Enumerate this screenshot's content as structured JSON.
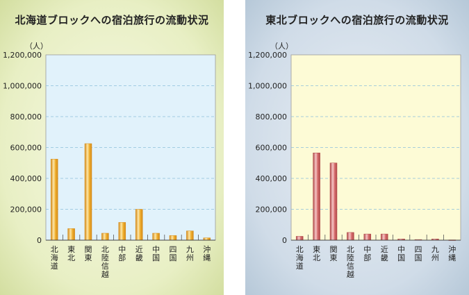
{
  "chart_data": [
    {
      "type": "bar",
      "title": "北海道ブロックへの宿泊旅行の流動状況",
      "ylabel": "（人）",
      "categories": [
        "北海道",
        "東北",
        "関東",
        "北陸信越",
        "中部",
        "近畿",
        "中国",
        "四国",
        "九州",
        "沖縄"
      ],
      "values": [
        525000,
        75000,
        625000,
        45000,
        115000,
        200000,
        45000,
        30000,
        60000,
        15000
      ],
      "ylim": [
        0,
        1200000
      ],
      "yticks": [
        "0",
        "200,000",
        "400,000",
        "600,000",
        "800,000",
        "1,000,000",
        "1,200,000"
      ],
      "grid": true,
      "colors": {
        "bar": "#f0b030",
        "bar_light": "#fde7a8",
        "bar_dark": "#d48a18",
        "plot_bg": "#e1f2fb"
      }
    },
    {
      "type": "bar",
      "title": "東北ブロックへの宿泊旅行の流動状況",
      "ylabel": "（人）",
      "categories": [
        "北海道",
        "東北",
        "関東",
        "北陸信越",
        "中部",
        "近畿",
        "中国",
        "四国",
        "九州",
        "沖縄"
      ],
      "values": [
        25000,
        565000,
        500000,
        50000,
        40000,
        40000,
        8000,
        4000,
        8000,
        2000
      ],
      "ylim": [
        0,
        1200000
      ],
      "yticks": [
        "0",
        "200,000",
        "400,000",
        "600,000",
        "800,000",
        "1,000,000",
        "1,200,000"
      ],
      "grid": true,
      "colors": {
        "bar": "#d87070",
        "bar_light": "#f7c8c8",
        "bar_dark": "#b04848",
        "plot_bg": "#fdfbd6"
      }
    }
  ]
}
